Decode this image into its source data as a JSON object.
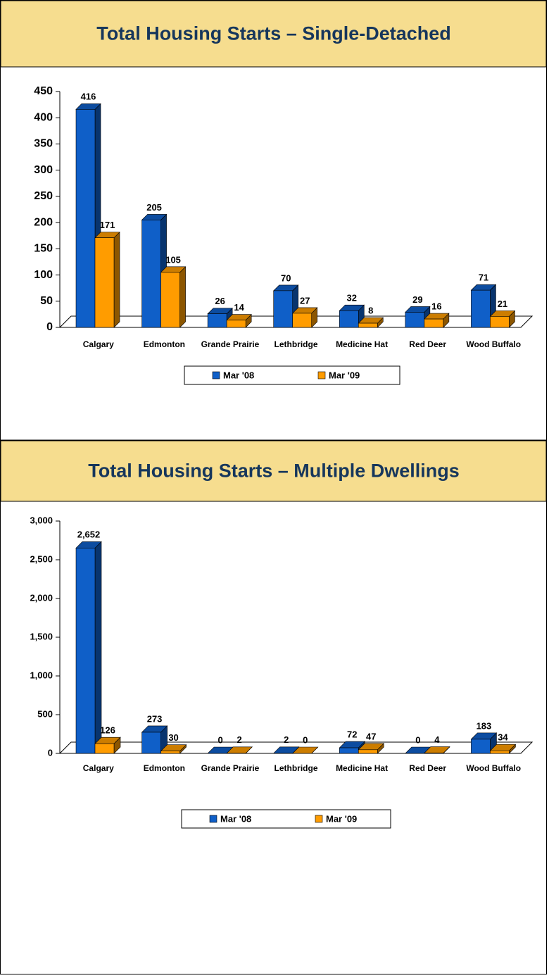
{
  "chart_data": [
    {
      "type": "bar3d",
      "title": "Total Housing Starts – Single-Detached",
      "categories": [
        "Calgary",
        "Edmonton",
        "Grande Prairie",
        "Lethbridge",
        "Medicine Hat",
        "Red Deer",
        "Wood Buffalo"
      ],
      "series": [
        {
          "name": "Mar '08",
          "color": "#0f5fc8",
          "values": [
            416,
            205,
            26,
            70,
            32,
            29,
            71
          ]
        },
        {
          "name": "Mar '09",
          "color": "#ff9c00",
          "values": [
            171,
            105,
            14,
            27,
            8,
            16,
            21
          ]
        }
      ],
      "ylim": [
        0,
        450
      ],
      "yticks": [
        0,
        50,
        100,
        150,
        200,
        250,
        300,
        350,
        400,
        450
      ]
    },
    {
      "type": "bar3d",
      "title": "Total Housing Starts – Multiple Dwellings",
      "categories": [
        "Calgary",
        "Edmonton",
        "Grande Prairie",
        "Lethbridge",
        "Medicine Hat",
        "Red Deer",
        "Wood Buffalo"
      ],
      "series": [
        {
          "name": "Mar '08",
          "color": "#0f5fc8",
          "values": [
            2652,
            273,
            0,
            2,
            72,
            0,
            183
          ],
          "value_labels": [
            "2,652",
            "273",
            "0",
            "2",
            "72",
            "0",
            "183"
          ]
        },
        {
          "name": "Mar '09",
          "color": "#ff9c00",
          "values": [
            126,
            30,
            2,
            0,
            47,
            4,
            34
          ],
          "value_labels": [
            "126",
            "30",
            "2",
            "0",
            "47",
            "4",
            "34"
          ]
        }
      ],
      "ylim": [
        0,
        3000
      ],
      "yticks": [
        0,
        500,
        {
          "value": 1000,
          "label": "1,000"
        },
        {
          "value": 1500,
          "label": "1,500"
        },
        {
          "value": 2000,
          "label": "2,000"
        },
        {
          "value": 2500,
          "label": "2,500"
        },
        {
          "value": 3000,
          "label": "3,000"
        }
      ]
    }
  ]
}
